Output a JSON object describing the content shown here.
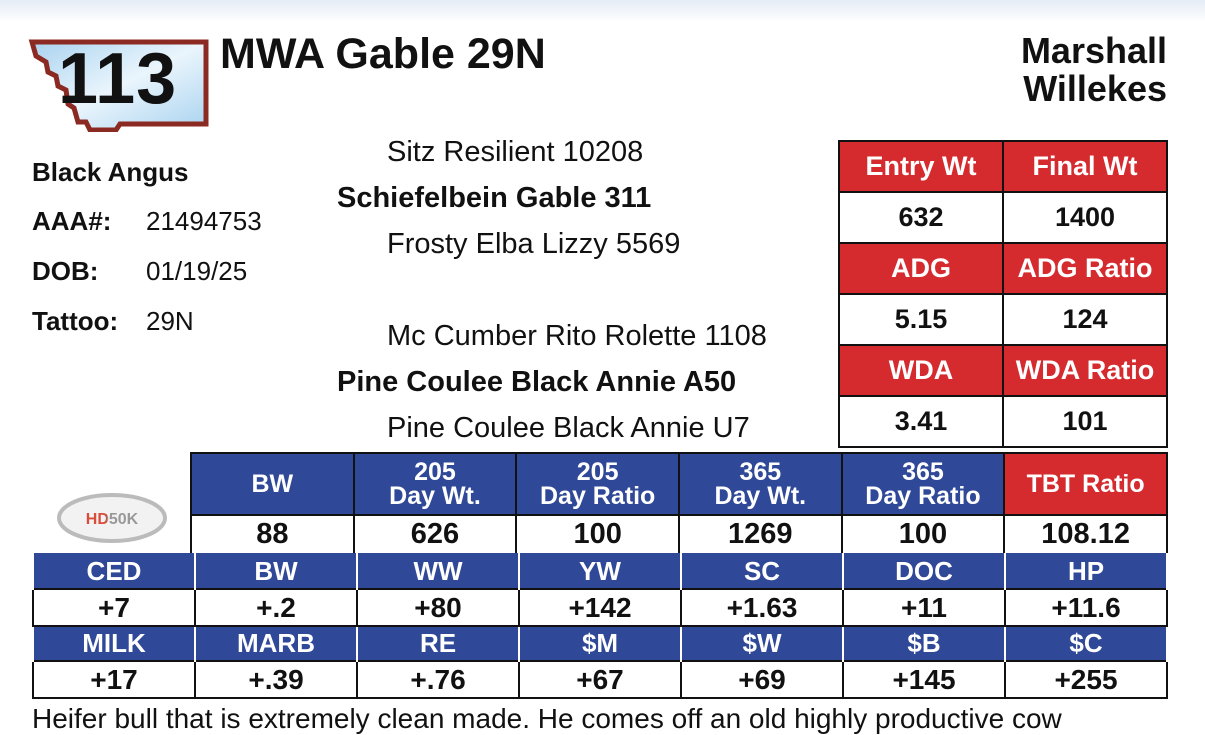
{
  "lot_number": "113",
  "title": "MWA Gable 29N",
  "consignor": [
    "Marshall",
    "Willekes"
  ],
  "info": {
    "breed": "Black Angus",
    "aaa_label": "AAA#:",
    "aaa_value": "21494753",
    "dob_label": "DOB:",
    "dob_value": "01/19/25",
    "tattoo_label": "Tattoo:",
    "tattoo_value": "29N"
  },
  "pedigree": {
    "sire_sire": "Sitz Resilient 10208",
    "sire": "Schiefelbein Gable 311",
    "sire_dam": "Frosty Elba Lizzy 5569",
    "dam_sire": "Mc Cumber Rito Rolette 1108",
    "dam": "Pine Coulee Black Annie A50",
    "dam_dam": "Pine Coulee Black Annie U7"
  },
  "performance": [
    {
      "headers": [
        "Entry Wt",
        "Final Wt"
      ],
      "values": [
        "632",
        "1400"
      ]
    },
    {
      "headers": [
        "ADG",
        "ADG Ratio"
      ],
      "values": [
        "5.15",
        "124"
      ]
    },
    {
      "headers": [
        "WDA",
        "WDA Ratio"
      ],
      "values": [
        "3.41",
        "101"
      ]
    }
  ],
  "hd50k_logo_text": "HD50K",
  "growth": {
    "headers": [
      [
        "BW"
      ],
      [
        "205",
        "Day Wt."
      ],
      [
        "205",
        "Day Ratio"
      ],
      [
        "365",
        "Day Wt."
      ],
      [
        "365",
        "Day Ratio"
      ],
      [
        "TBT Ratio"
      ]
    ],
    "values": [
      "88",
      "626",
      "100",
      "1269",
      "100",
      "108.12"
    ]
  },
  "epds": [
    {
      "headers": [
        "CED",
        "BW",
        "WW",
        "YW",
        "SC",
        "DOC",
        "HP"
      ],
      "values": [
        "+7",
        "+.2",
        "+80",
        "+142",
        "+1.63",
        "+11",
        "+11.6"
      ]
    },
    {
      "headers": [
        "MILK",
        "MARB",
        "RE",
        "$M",
        "$W",
        "$B",
        "$C"
      ],
      "values": [
        "+17",
        "+.39",
        "+.76",
        "+67",
        "+69",
        "+145",
        "+255"
      ]
    }
  ],
  "description": "Heifer bull that is extremely clean made. He comes off an old highly productive cow",
  "colors": {
    "red": "#d52b2f",
    "blue": "#2f4897",
    "logo_border": "#8b2a22",
    "logo_fill": "#bfe0f5"
  }
}
